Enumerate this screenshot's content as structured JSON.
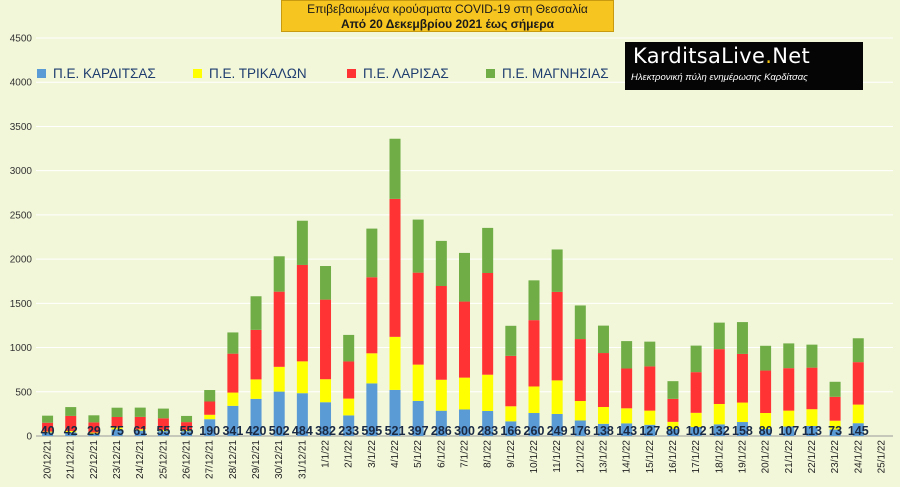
{
  "header": {
    "title": "Επιβεβαιωμένα κρούσματα COVID-19 στη Θεσσαλία",
    "subtitle": "Από 20 Δεκεμβρίου 2021 έως σήμερα"
  },
  "logo": {
    "brand_left": "KarditsaLive",
    "brand_dot": ".",
    "brand_right": "Net",
    "tagline": "Ηλεκτρονική πύλη ενημέρωσης Καρδίτσας"
  },
  "colors": {
    "background": "#f2f7da",
    "gridline": "#ffffff",
    "karditsa": "#5b9bd5",
    "trikala": "#ffff00",
    "larisa": "#ff3333",
    "magnisia": "#70ad47"
  },
  "chart_data": {
    "type": "bar",
    "stacked": true,
    "title": "Επιβεβαιωμένα κρούσματα COVID-19 στη Θεσσαλία",
    "subtitle": "Από 20 Δεκεμβρίου 2021 έως σήμερα",
    "xlabel": "",
    "ylabel": "",
    "ylim": [
      0,
      4500
    ],
    "yticks": [
      0,
      500,
      1000,
      1500,
      2000,
      2500,
      3000,
      3500,
      4000,
      4500
    ],
    "grid": true,
    "legend_position": "top",
    "categories": [
      "20/12/21",
      "21/12/21",
      "22/12/21",
      "23/12/21",
      "24/12/21",
      "25/12/21",
      "26/12/21",
      "27/12/21",
      "28/12/21",
      "29/12/21",
      "30/12/21",
      "31/12/21",
      "1/1/22",
      "2/1/22",
      "3/1/22",
      "4/1/22",
      "5/1/22",
      "6/1/22",
      "7/1/22",
      "8/1/22",
      "9/1/22",
      "10/1/22",
      "11/1/22",
      "12/1/22",
      "13/1/22",
      "14/1/22",
      "15/1/22",
      "16/1/22",
      "17/1/22",
      "18/1/22",
      "19/1/22",
      "20/1/22",
      "21/1/22",
      "22/1/22",
      "23/1/22",
      "24/1/22",
      "25/1/22"
    ],
    "series": [
      {
        "name": "Π.Ε. ΚΑΡΔΙΤΣΑΣ",
        "color": "#5b9bd5",
        "values": [
          40,
          42,
          29,
          75,
          61,
          55,
          55,
          190,
          341,
          420,
          502,
          484,
          382,
          233,
          595,
          521,
          397,
          286,
          300,
          283,
          166,
          260,
          249,
          176,
          138,
          143,
          127,
          80,
          102,
          132,
          158,
          80,
          107,
          113,
          73,
          145,
          0
        ]
      },
      {
        "name": "Π.Ε. ΤΡΙΚΑΛΩΝ",
        "color": "#ffff00",
        "values": [
          10,
          15,
          10,
          20,
          15,
          15,
          12,
          50,
          150,
          220,
          280,
          360,
          260,
          190,
          340,
          600,
          410,
          350,
          360,
          410,
          170,
          300,
          380,
          220,
          190,
          170,
          160,
          80,
          160,
          230,
          220,
          180,
          180,
          190,
          100,
          210,
          0
        ]
      },
      {
        "name": "Π.Ε. ΛΑΡΙΣΑΣ",
        "color": "#ff3333",
        "values": [
          100,
          170,
          115,
          120,
          140,
          130,
          90,
          150,
          440,
          560,
          850,
          1090,
          900,
          420,
          860,
          1560,
          1040,
          1060,
          860,
          1150,
          570,
          750,
          1000,
          700,
          610,
          450,
          500,
          260,
          460,
          620,
          550,
          480,
          480,
          470,
          270,
          480,
          0
        ]
      },
      {
        "name": "Π.Ε. ΜΑΓΝΗΣΙΑΣ",
        "color": "#70ad47",
        "values": [
          80,
          100,
          80,
          105,
          105,
          110,
          70,
          130,
          240,
          380,
          400,
          500,
          380,
          300,
          550,
          680,
          600,
          510,
          550,
          510,
          340,
          450,
          480,
          380,
          310,
          310,
          280,
          200,
          300,
          300,
          360,
          280,
          280,
          260,
          170,
          270,
          0
        ]
      }
    ],
    "data_labels": [
      "40",
      "42",
      "29",
      "75",
      "61",
      "55",
      "55",
      "190",
      "341",
      "420",
      "502",
      "484",
      "382",
      "233",
      "595",
      "521",
      "397",
      "286",
      "300",
      "283",
      "166",
      "260",
      "249",
      "176",
      "138",
      "143",
      "127",
      "80",
      "102",
      "132",
      "158",
      "80",
      "107",
      "113",
      "73",
      "145",
      ""
    ]
  }
}
